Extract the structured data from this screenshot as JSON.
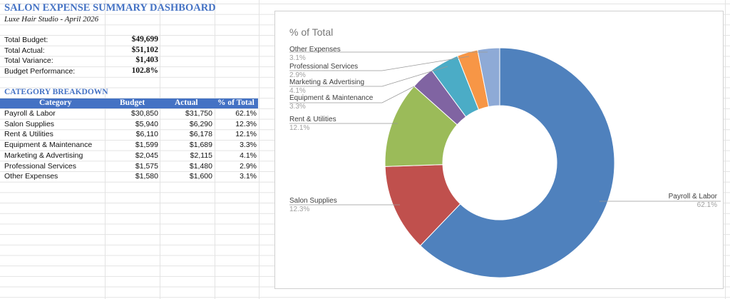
{
  "sheet": {
    "title": "SALON EXPENSE SUMMARY DASHBOARD",
    "subtitle": "Luxe Hair Studio - April 2026",
    "summary": [
      {
        "label": "Total Budget:",
        "value": "$49,699"
      },
      {
        "label": "Total Actual:",
        "value": "$51,102"
      },
      {
        "label": "Total Variance:",
        "value": "$1,403"
      },
      {
        "label": "Budget Performance:",
        "value": "102.8%"
      }
    ],
    "section_title": "CATEGORY BREAKDOWN",
    "columns": [
      "Category",
      "Budget",
      "Actual",
      "% of Total"
    ],
    "rows": [
      [
        "Payroll & Labor",
        "$30,850",
        "$31,750",
        "62.1%"
      ],
      [
        "Salon Supplies",
        "$5,940",
        "$6,290",
        "12.3%"
      ],
      [
        "Rent & Utilities",
        "$6,110",
        "$6,178",
        "12.1%"
      ],
      [
        "Equipment & Maintenance",
        "$1,599",
        "$1,689",
        "3.3%"
      ],
      [
        "Marketing & Advertising",
        "$2,045",
        "$2,115",
        "4.1%"
      ],
      [
        "Professional Services",
        "$1,575",
        "$1,480",
        "2.9%"
      ],
      [
        "Other Expenses",
        "$1,580",
        "$1,600",
        "3.1%"
      ]
    ],
    "header_color": "#4472c4"
  },
  "chart_data": {
    "type": "pie",
    "variant": "donut",
    "title": "% of Total",
    "categories": [
      "Payroll & Labor",
      "Salon Supplies",
      "Rent & Utilities",
      "Equipment & Maintenance",
      "Marketing & Advertising",
      "Professional Services",
      "Other Expenses"
    ],
    "values": [
      62.1,
      12.3,
      12.1,
      3.3,
      4.1,
      2.9,
      3.1
    ],
    "labels": [
      "62.1%",
      "12.3%",
      "12.1%",
      "3.3%",
      "4.1%",
      "2.9%",
      "3.1%"
    ],
    "colors": [
      "#4f81bd",
      "#c0504d",
      "#9bbb59",
      "#8064a2",
      "#4bacc6",
      "#f79646",
      "#8eaad6"
    ],
    "legend": "none"
  }
}
